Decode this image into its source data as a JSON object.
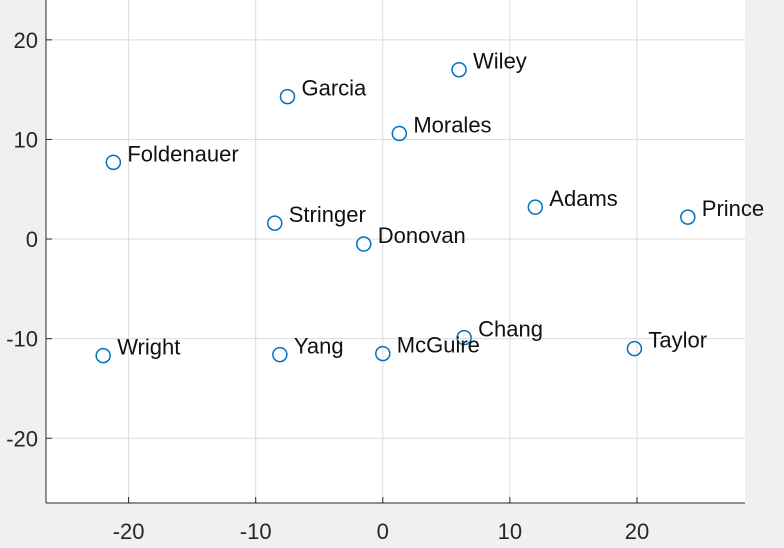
{
  "chart_data": {
    "type": "scatter",
    "title": "",
    "xlabel": "",
    "ylabel": "",
    "xlim": [
      -26.5,
      28.5
    ],
    "ylim": [
      -26.5,
      24
    ],
    "x_ticks": [
      -20,
      -10,
      0,
      10,
      20
    ],
    "y_ticks": [
      -20,
      -10,
      0,
      10,
      20
    ],
    "x_tick_labels": [
      "-20",
      "-10",
      "0",
      "10",
      "20"
    ],
    "y_tick_labels": [
      "-20",
      "-10",
      "0",
      "10",
      "20"
    ],
    "grid": true,
    "marker_color": "#0072bd",
    "points": [
      {
        "label": "Wiley",
        "x": 6,
        "y": 17
      },
      {
        "label": "Garcia",
        "x": -7.5,
        "y": 14.3
      },
      {
        "label": "Morales",
        "x": 1.3,
        "y": 10.6
      },
      {
        "label": "Foldenauer",
        "x": -21.2,
        "y": 7.7
      },
      {
        "label": "Adams",
        "x": 12,
        "y": 3.2
      },
      {
        "label": "Prince",
        "x": 24,
        "y": 2.2
      },
      {
        "label": "Stringer",
        "x": -8.5,
        "y": 1.6
      },
      {
        "label": "Donovan",
        "x": -1.5,
        "y": -0.5
      },
      {
        "label": "Chang",
        "x": 6.4,
        "y": -9.9
      },
      {
        "label": "Wright",
        "x": -22,
        "y": -11.7
      },
      {
        "label": "Yang",
        "x": -8.1,
        "y": -11.6
      },
      {
        "label": "McGuire",
        "x": 0,
        "y": -11.5
      },
      {
        "label": "Taylor",
        "x": 19.8,
        "y": -11
      }
    ]
  }
}
